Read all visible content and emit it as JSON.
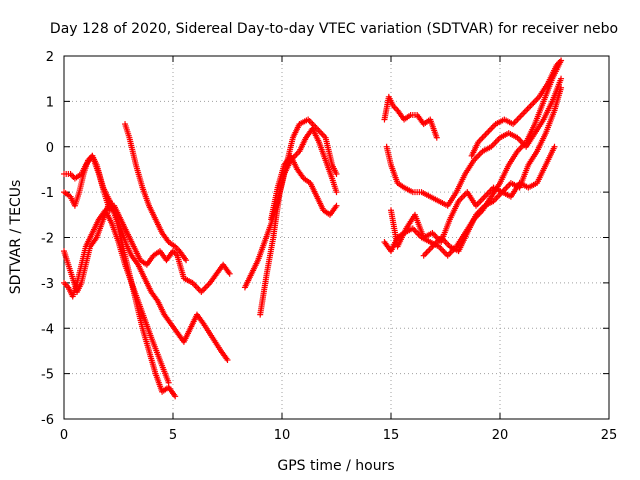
{
  "chart_data": {
    "type": "scatter",
    "title": "Day 128 of 2020, Sidereal Day-to-day VTEC variation (SDTVAR) for receiver nebo",
    "xlabel": "GPS time / hours",
    "ylabel": "SDTVAR / TECUs",
    "xlim": [
      0,
      25
    ],
    "ylim": [
      -6,
      2
    ],
    "xticks": [
      "0",
      "5",
      "10",
      "15",
      "20",
      "25"
    ],
    "yticks": [
      "-6",
      "-5",
      "-4",
      "-3",
      "-2",
      "-1",
      "0",
      "1",
      "2"
    ],
    "grid": true,
    "marker": "plus",
    "color": "#ff0000",
    "series": [
      {
        "x": [
          0.0,
          0.3,
          0.5,
          0.8,
          1.0,
          1.3,
          1.6,
          1.9,
          2.1,
          2.3,
          2.6,
          2.9,
          3.2,
          3.5,
          3.8,
          4.1,
          4.4,
          4.7,
          5.0,
          5.2,
          5.5,
          5.9,
          6.3,
          6.7,
          7.0,
          7.3,
          7.6
        ],
        "y": [
          -0.6,
          -0.6,
          -0.7,
          -0.6,
          -0.4,
          -0.2,
          -0.6,
          -1.1,
          -1.4,
          -1.3,
          -1.6,
          -1.9,
          -2.2,
          -2.5,
          -2.6,
          -2.4,
          -2.3,
          -2.5,
          -2.3,
          -2.4,
          -2.9,
          -3.0,
          -3.2,
          -3.0,
          -2.8,
          -2.6,
          -2.8
        ]
      },
      {
        "x": [
          0.0,
          0.3,
          0.5,
          0.7,
          0.9,
          1.1,
          1.3,
          1.5,
          1.8,
          2.0,
          2.3,
          2.6,
          2.9,
          3.1,
          3.4,
          3.7,
          4.0,
          4.3,
          4.6,
          4.9,
          5.2,
          5.5,
          5.8,
          6.1,
          6.4,
          6.8,
          7.2,
          7.5
        ],
        "y": [
          -1.0,
          -1.1,
          -1.3,
          -1.0,
          -0.6,
          -0.3,
          -0.2,
          -0.4,
          -0.9,
          -1.1,
          -1.4,
          -1.8,
          -2.2,
          -2.4,
          -2.6,
          -2.9,
          -3.2,
          -3.4,
          -3.7,
          -3.9,
          -4.1,
          -4.3,
          -4.0,
          -3.7,
          -3.9,
          -4.2,
          -4.5,
          -4.7
        ]
      },
      {
        "x": [
          0.0,
          0.2,
          0.4,
          0.6,
          0.8,
          1.0,
          1.2,
          1.5,
          1.8,
          2.1,
          2.4,
          2.7,
          3.0,
          3.3,
          3.6,
          3.9,
          4.2,
          4.5,
          4.8,
          5.1
        ],
        "y": [
          -2.3,
          -2.6,
          -2.9,
          -3.2,
          -3.0,
          -2.6,
          -2.2,
          -2.0,
          -1.6,
          -1.2,
          -1.6,
          -2.2,
          -2.8,
          -3.4,
          -4.0,
          -4.5,
          -5.0,
          -5.4,
          -5.3,
          -5.5
        ]
      },
      {
        "x": [
          0.0,
          0.2,
          0.4,
          0.6,
          0.8,
          1.0,
          1.3,
          1.6,
          1.9,
          2.2,
          2.5,
          2.8,
          3.1,
          3.4,
          3.7,
          4.0,
          4.4,
          4.8
        ],
        "y": [
          -3.0,
          -3.1,
          -3.3,
          -3.0,
          -2.6,
          -2.2,
          -1.9,
          -1.6,
          -1.4,
          -1.7,
          -2.1,
          -2.6,
          -3.0,
          -3.4,
          -3.8,
          -4.2,
          -4.7,
          -5.2
        ]
      },
      {
        "x": [
          2.8,
          3.0,
          3.3,
          3.6,
          3.9,
          4.2,
          4.5,
          4.8,
          5.1,
          5.3,
          5.6
        ],
        "y": [
          0.5,
          0.2,
          -0.4,
          -0.9,
          -1.3,
          -1.6,
          -1.9,
          -2.1,
          -2.2,
          -2.3,
          -2.5
        ]
      },
      {
        "x": [
          8.3,
          8.6,
          8.9,
          9.2,
          9.5,
          9.8,
          10.1,
          10.4,
          10.8,
          11.1,
          11.4,
          11.7,
          12.0,
          12.3,
          12.5
        ],
        "y": [
          -3.1,
          -2.8,
          -2.5,
          -2.1,
          -1.7,
          -1.2,
          -0.6,
          -0.3,
          -0.1,
          0.2,
          0.4,
          0.1,
          -0.3,
          -0.7,
          -1.0
        ]
      },
      {
        "x": [
          9.0,
          9.3,
          9.6,
          9.9,
          10.2,
          10.5,
          10.8,
          11.2,
          11.6,
          12.0,
          12.3,
          12.5
        ],
        "y": [
          -3.7,
          -2.8,
          -2.0,
          -1.0,
          -0.4,
          0.2,
          0.5,
          0.6,
          0.4,
          0.2,
          -0.4,
          -0.6
        ]
      },
      {
        "x": [
          9.5,
          9.8,
          10.1,
          10.4,
          10.7,
          11.0,
          11.3,
          11.6,
          11.9,
          12.2,
          12.5
        ],
        "y": [
          -1.6,
          -0.9,
          -0.4,
          -0.2,
          -0.5,
          -0.7,
          -0.8,
          -1.1,
          -1.4,
          -1.5,
          -1.3
        ]
      },
      {
        "x": [
          14.7,
          14.9,
          15.1,
          15.3,
          15.6,
          15.9,
          16.2,
          16.5,
          16.8,
          17.1
        ],
        "y": [
          0.6,
          1.1,
          0.9,
          0.8,
          0.6,
          0.7,
          0.7,
          0.5,
          0.6,
          0.2
        ]
      },
      {
        "x": [
          14.8,
          15.0,
          15.3,
          15.6,
          16.0,
          16.4,
          16.8,
          17.2,
          17.6,
          18.0,
          18.4,
          18.8,
          19.2,
          19.6,
          20.0,
          20.4,
          20.8,
          21.2,
          21.6,
          22.0,
          22.4,
          22.8
        ],
        "y": [
          0.0,
          -0.4,
          -0.8,
          -0.9,
          -1.0,
          -1.0,
          -1.1,
          -1.2,
          -1.3,
          -1.0,
          -0.6,
          -0.3,
          -0.1,
          0.0,
          0.2,
          0.3,
          0.2,
          0.0,
          0.3,
          0.6,
          1.0,
          1.5
        ]
      },
      {
        "x": [
          14.7,
          15.0,
          15.3,
          15.6,
          16.0,
          16.4,
          16.8,
          17.2,
          17.6,
          18.0,
          18.4,
          18.8,
          19.2,
          19.6,
          20.0,
          20.4,
          20.8,
          21.2,
          21.6,
          22.0,
          22.4,
          22.8
        ],
        "y": [
          -2.1,
          -2.3,
          -2.0,
          -1.9,
          -1.8,
          -2.0,
          -2.1,
          -2.2,
          -2.4,
          -2.2,
          -1.9,
          -1.6,
          -1.4,
          -1.1,
          -0.8,
          -0.4,
          -0.1,
          0.1,
          0.5,
          1.0,
          1.5,
          1.9
        ]
      },
      {
        "x": [
          15.0,
          15.3,
          15.7,
          16.1,
          16.5,
          16.9,
          17.3,
          17.7,
          18.1,
          18.5,
          18.9,
          19.3,
          19.7,
          20.1,
          20.5,
          20.9,
          21.3,
          21.7,
          22.1,
          22.5,
          22.8
        ],
        "y": [
          -1.4,
          -2.2,
          -1.8,
          -1.5,
          -2.0,
          -1.9,
          -2.1,
          -1.6,
          -1.2,
          -1.0,
          -1.3,
          -1.1,
          -0.9,
          -1.0,
          -0.8,
          -0.9,
          -0.4,
          -0.1,
          0.3,
          0.8,
          1.3
        ]
      },
      {
        "x": [
          16.5,
          16.9,
          17.3,
          17.7,
          18.1,
          18.5,
          18.9,
          19.3,
          19.7,
          20.1,
          20.5,
          20.9,
          21.3,
          21.7,
          22.1,
          22.5
        ],
        "y": [
          -2.4,
          -2.2,
          -2.0,
          -2.2,
          -2.3,
          -1.9,
          -1.5,
          -1.3,
          -1.2,
          -1.0,
          -1.1,
          -0.8,
          -0.9,
          -0.8,
          -0.4,
          0.0
        ]
      },
      {
        "x": [
          18.7,
          19.0,
          19.4,
          19.8,
          20.2,
          20.6,
          21.0,
          21.4,
          21.8,
          22.2,
          22.6,
          22.8
        ],
        "y": [
          -0.2,
          0.1,
          0.3,
          0.5,
          0.6,
          0.5,
          0.7,
          0.9,
          1.1,
          1.4,
          1.8,
          1.9
        ]
      }
    ]
  }
}
